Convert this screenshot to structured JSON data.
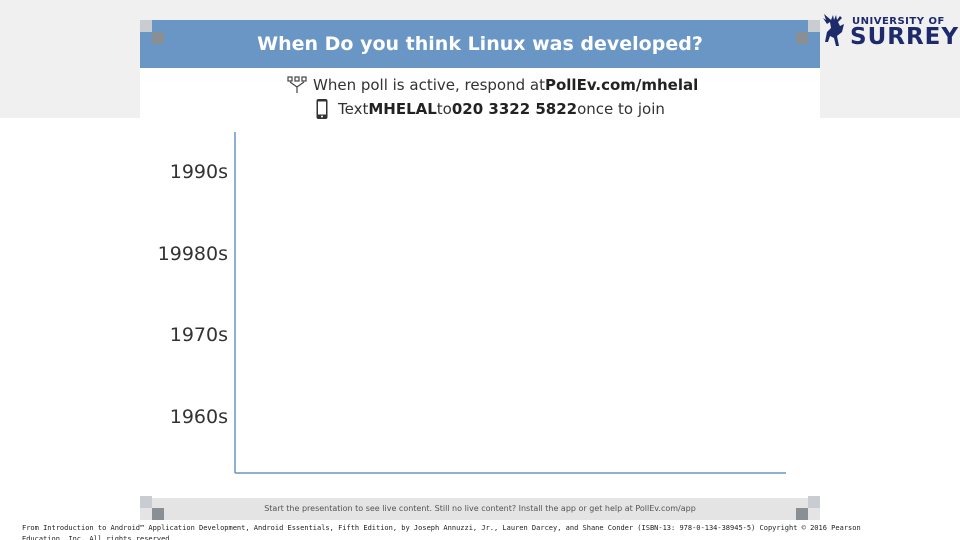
{
  "poll": {
    "title": "When Do you think Linux was developed?",
    "instruction_web_prefix": "When poll is active, respond at ",
    "instruction_web_link": "PollEv.com/mhelal",
    "instruction_text_prefix": "Text ",
    "instruction_text_code": "MHELAL",
    "instruction_text_mid": " to ",
    "instruction_text_number": "020 3322 5822",
    "instruction_text_suffix": " once to join",
    "footer_message": "Start the presentation to see live content. Still no live content? Install the app or get help at PollEv.com/app"
  },
  "logo": {
    "top_text": "UNIVERSITY OF",
    "main_text": "SURREY",
    "icon": "stag-icon"
  },
  "icons": {
    "web": "web-response-icon",
    "phone": "phone-icon"
  },
  "chart_data": {
    "type": "bar",
    "orientation": "horizontal",
    "categories": [
      "1990s",
      "19980s",
      "1970s",
      "1960s"
    ],
    "values": [
      0,
      0,
      0,
      0
    ],
    "title": "When Do you think Linux was developed?",
    "xlabel": "",
    "ylabel": "",
    "grid": false
  },
  "copyright": "From Introduction to Android™ Application Development, Android Essentials, Fifth Edition, by Joseph Annuzzi, Jr., Lauren Darcey, and Shane Conder (ISBN-13: 978-0-134-38945-5) Copyright © 2016 Pearson Education, Inc. All rights reserved.",
  "colors": {
    "header": "#6a96c6",
    "bar": "#6a96c6",
    "axis": "#6a96c6",
    "logo": "#1d2a6b"
  }
}
